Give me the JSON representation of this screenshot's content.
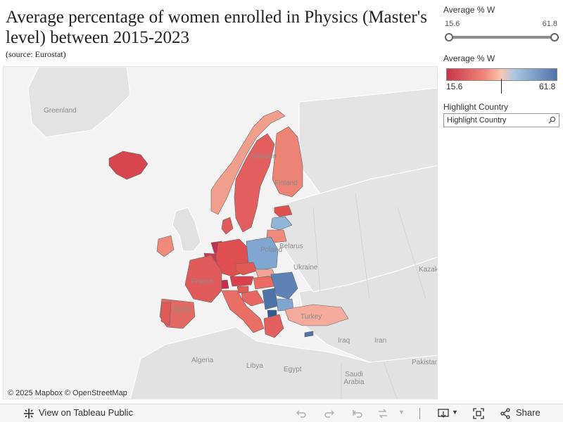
{
  "header": {
    "title": "Average percentage of women enrolled in Physics (Master's level) between 2015-2023",
    "source": "(source: Eurostat)"
  },
  "filter": {
    "label": "Average % W",
    "min": "15.6",
    "max": "61.8",
    "selected_min": 15.6,
    "selected_max": 61.8
  },
  "legend": {
    "label": "Average % W",
    "min": "15.6",
    "max": "61.8",
    "low_color": "#c8344b",
    "mid_color": "#f7c8b3",
    "high_color": "#4f74a8"
  },
  "highlight": {
    "label": "Highlight Country",
    "placeholder": "Highlight Country"
  },
  "map": {
    "labels": [
      {
        "name": "Greenland"
      },
      {
        "name": "Sweden"
      },
      {
        "name": "Finland"
      },
      {
        "name": "Belarus"
      },
      {
        "name": "Poland"
      },
      {
        "name": "Ukraine"
      },
      {
        "name": "France"
      },
      {
        "name": "Spain"
      },
      {
        "name": "Turkey"
      },
      {
        "name": "Kazakh"
      },
      {
        "name": "Iraq"
      },
      {
        "name": "Iran"
      },
      {
        "name": "Algeria"
      },
      {
        "name": "Libya"
      },
      {
        "name": "Egypt"
      },
      {
        "name": "Saudi Arabia"
      },
      {
        "name": "Pakistan"
      }
    ],
    "attribution": "© 2025 Mapbox  © OpenStreetMap"
  },
  "toolbar": {
    "view_label": "View on Tableau Public",
    "share_label": "Share",
    "icons": [
      "undo-icon",
      "redo-icon",
      "revert-icon",
      "refresh-icon",
      "download-icon",
      "fullscreen-icon",
      "share-icon"
    ]
  }
}
